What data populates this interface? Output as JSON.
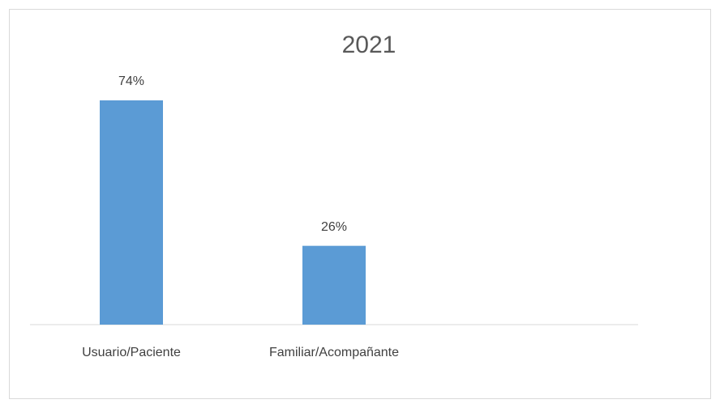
{
  "chart_data": {
    "type": "bar",
    "title": "2021",
    "categories": [
      "Usuario/Paciente",
      "Familiar/Acompañante",
      null
    ],
    "values": [
      74,
      26,
      null
    ],
    "value_labels": [
      "74%",
      "26%",
      null
    ],
    "color": "#5b9bd5",
    "ylim": [
      0,
      80
    ]
  }
}
